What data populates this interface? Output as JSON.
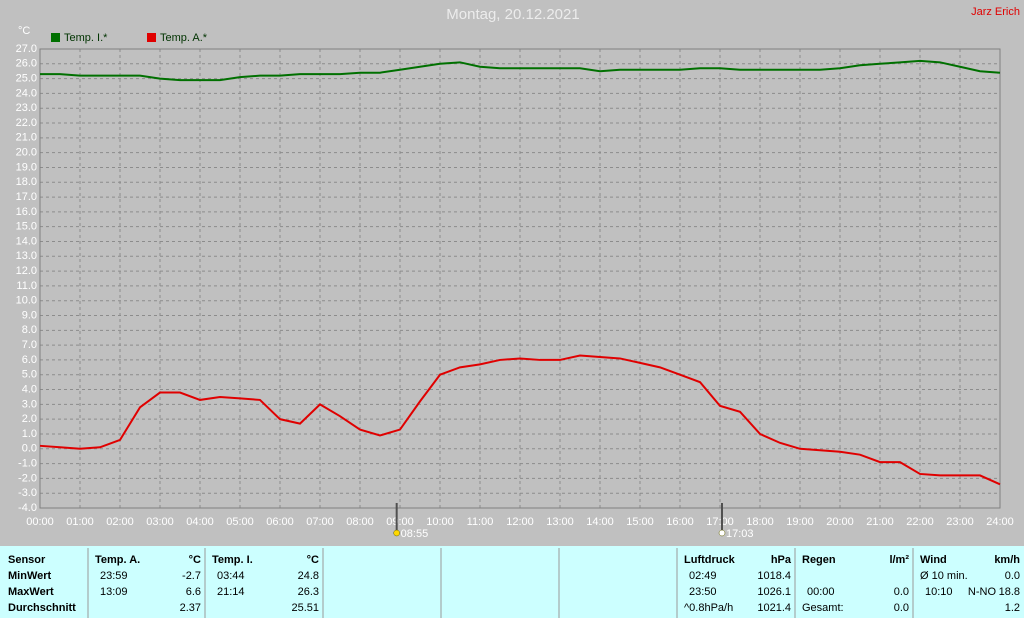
{
  "chart_data": {
    "type": "line",
    "title": "Montag, 20.12.2021",
    "corner_label": "Jarz Erich",
    "y_unit": "°C",
    "x": [
      0,
      0.5,
      1,
      1.5,
      2,
      2.5,
      3,
      3.5,
      4,
      4.5,
      5,
      5.5,
      6,
      6.5,
      7,
      7.5,
      8,
      8.5,
      9,
      9.5,
      10,
      10.5,
      11,
      11.5,
      12,
      12.5,
      13,
      13.5,
      14,
      14.5,
      15,
      15.5,
      16,
      16.5,
      17,
      17.5,
      18,
      18.5,
      19,
      19.5,
      20,
      20.5,
      21,
      21.5,
      22,
      22.5,
      23,
      23.5,
      24
    ],
    "series": [
      {
        "name": "Temp. I.*",
        "color": "#007000",
        "values": [
          25.3,
          25.3,
          25.2,
          25.2,
          25.2,
          25.2,
          25.0,
          24.9,
          24.9,
          24.9,
          25.1,
          25.2,
          25.2,
          25.3,
          25.3,
          25.3,
          25.4,
          25.4,
          25.6,
          25.8,
          26.0,
          26.1,
          25.8,
          25.7,
          25.7,
          25.7,
          25.7,
          25.7,
          25.5,
          25.6,
          25.6,
          25.6,
          25.6,
          25.7,
          25.7,
          25.6,
          25.6,
          25.6,
          25.6,
          25.6,
          25.7,
          25.9,
          26.0,
          26.1,
          26.2,
          26.1,
          25.8,
          25.5,
          25.4
        ]
      },
      {
        "name": "Temp. A.*",
        "color": "#e00000",
        "values": [
          0.2,
          0.1,
          0.0,
          0.1,
          0.6,
          2.8,
          3.8,
          3.8,
          3.3,
          3.5,
          3.4,
          3.3,
          2.0,
          1.7,
          3.0,
          2.2,
          1.3,
          0.9,
          1.3,
          3.2,
          5.0,
          5.5,
          5.7,
          6.0,
          6.1,
          6.0,
          6.0,
          6.3,
          6.2,
          6.1,
          5.8,
          5.5,
          5.0,
          4.5,
          2.9,
          2.5,
          1.0,
          0.4,
          0.0,
          -0.1,
          -0.2,
          -0.4,
          -0.9,
          -0.9,
          -1.7,
          -1.8,
          -1.8,
          -1.8,
          -2.4
        ]
      }
    ],
    "xlim": [
      0,
      24
    ],
    "xticks": [
      {
        "value": 0,
        "label": "00:00"
      },
      {
        "value": 1,
        "label": "01:00"
      },
      {
        "value": 2,
        "label": "02:00"
      },
      {
        "value": 3,
        "label": "03:00"
      },
      {
        "value": 4,
        "label": "04:00"
      },
      {
        "value": 5,
        "label": "05:00"
      },
      {
        "value": 6,
        "label": "06:00"
      },
      {
        "value": 7,
        "label": "07:00"
      },
      {
        "value": 8,
        "label": "08:00"
      },
      {
        "value": 9,
        "label": "09:00"
      },
      {
        "value": 10,
        "label": "10:00"
      },
      {
        "value": 11,
        "label": "11:00"
      },
      {
        "value": 12,
        "label": "12:00"
      },
      {
        "value": 13,
        "label": "13:00"
      },
      {
        "value": 14,
        "label": "14:00"
      },
      {
        "value": 15,
        "label": "15:00"
      },
      {
        "value": 16,
        "label": "16:00"
      },
      {
        "value": 17,
        "label": "17:00"
      },
      {
        "value": 18,
        "label": "18:00"
      },
      {
        "value": 19,
        "label": "19:00"
      },
      {
        "value": 20,
        "label": "20:00"
      },
      {
        "value": 21,
        "label": "21:00"
      },
      {
        "value": 22,
        "label": "22:00"
      },
      {
        "value": 23,
        "label": "23:00"
      },
      {
        "value": 24,
        "label": "24:00"
      }
    ],
    "ylim": [
      -4,
      27
    ],
    "yticks": [
      {
        "value": 27,
        "label": "27.0"
      },
      {
        "value": 26,
        "label": "26.0"
      },
      {
        "value": 25,
        "label": "25.0"
      },
      {
        "value": 24,
        "label": "24.0"
      },
      {
        "value": 23,
        "label": "23.0"
      },
      {
        "value": 22,
        "label": "22.0"
      },
      {
        "value": 21,
        "label": "21.0"
      },
      {
        "value": 20,
        "label": "20.0"
      },
      {
        "value": 19,
        "label": "19.0"
      },
      {
        "value": 18,
        "label": "18.0"
      },
      {
        "value": 17,
        "label": "17.0"
      },
      {
        "value": 16,
        "label": "16.0"
      },
      {
        "value": 15,
        "label": "15.0"
      },
      {
        "value": 14,
        "label": "14.0"
      },
      {
        "value": 13,
        "label": "13.0"
      },
      {
        "value": 12,
        "label": "12.0"
      },
      {
        "value": 11,
        "label": "11.0"
      },
      {
        "value": 10,
        "label": "10.0"
      },
      {
        "value": 9,
        "label": "9.0"
      },
      {
        "value": 8,
        "label": "8.0"
      },
      {
        "value": 7,
        "label": "7.0"
      },
      {
        "value": 6,
        "label": "6.0"
      },
      {
        "value": 5,
        "label": "5.0"
      },
      {
        "value": 4,
        "label": "4.0"
      },
      {
        "value": 3,
        "label": "3.0"
      },
      {
        "value": 2,
        "label": "2.0"
      },
      {
        "value": 1,
        "label": "1.0"
      },
      {
        "value": 0,
        "label": "0.0"
      },
      {
        "value": -1,
        "label": "-1.0"
      },
      {
        "value": -2,
        "label": "-2.0"
      },
      {
        "value": -3,
        "label": "-3.0"
      },
      {
        "value": -4,
        "label": "-4.0"
      }
    ],
    "grid": true,
    "annotations": [
      {
        "x": 8.917,
        "label": "08:55"
      },
      {
        "x": 17.05,
        "label": "17:03"
      }
    ]
  },
  "table": {
    "sensor_header": "Sensor",
    "row_labels": [
      "MinWert",
      "MaxWert",
      "Durchschnitt"
    ],
    "panels": [
      {
        "title": "Temp. A.",
        "unit": "°C",
        "rows": [
          {
            "time": "23:59",
            "value": "-2.7"
          },
          {
            "time": "13:09",
            "value": "6.6"
          },
          {
            "value": "2.37"
          }
        ]
      },
      {
        "title": "Temp. I.",
        "unit": "°C",
        "rows": [
          {
            "time": "03:44",
            "value": "24.8"
          },
          {
            "time": "21:14",
            "value": "26.3"
          },
          {
            "value": "25.51"
          }
        ]
      },
      {
        "title": "Luftdruck",
        "unit": "hPa",
        "rows": [
          {
            "time": "02:49",
            "value": "1018.4"
          },
          {
            "time": "23:50",
            "value": "1026.1"
          },
          {
            "time": "^0.8hPa/h",
            "value": "1021.4"
          }
        ]
      },
      {
        "title": "Regen",
        "unit": "l/m²",
        "rows": [
          {},
          {
            "time": "00:00",
            "value": "0.0"
          },
          {
            "time": "Gesamt:",
            "value": "0.0"
          }
        ]
      },
      {
        "title": "Wind",
        "unit": "km/h",
        "rows": [
          {
            "time": "Ø 10 min.",
            "value": "0.0"
          },
          {
            "time": "10:10",
            "dir": "N-NO",
            "value": "18.8"
          },
          {
            "value": "1.2"
          }
        ]
      }
    ]
  }
}
